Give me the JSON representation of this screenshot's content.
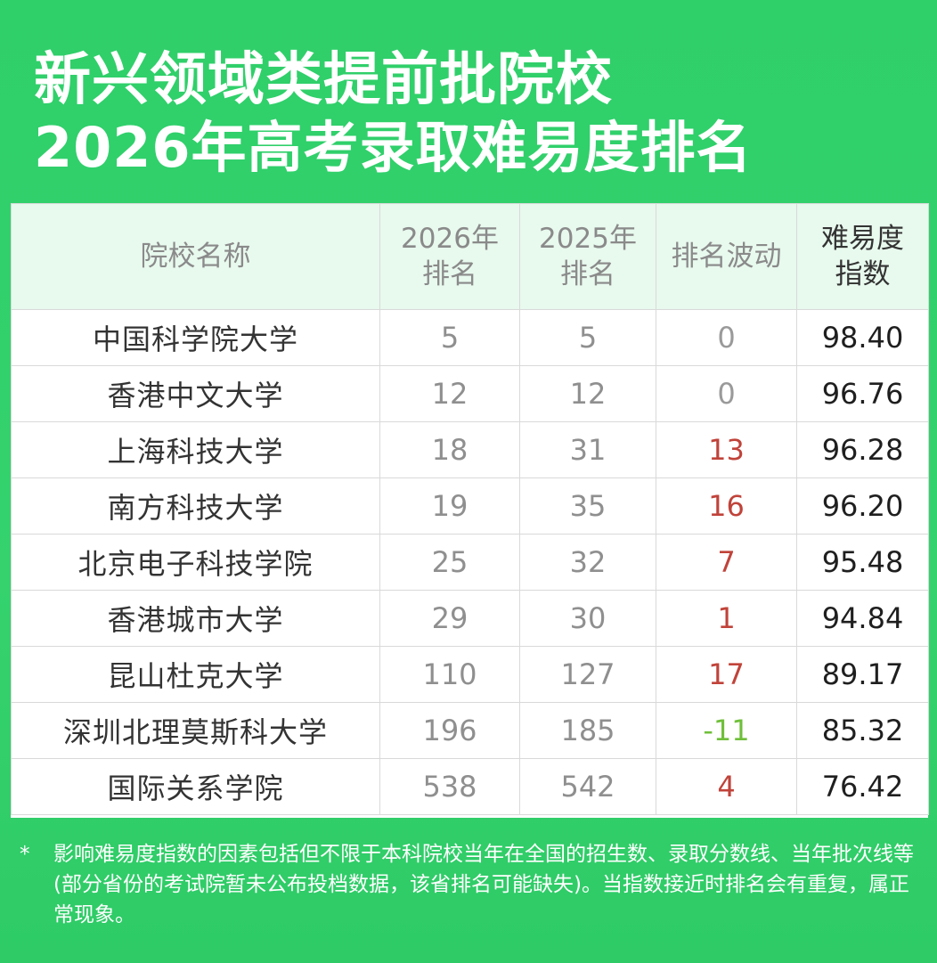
{
  "title": {
    "line1": "新兴领域类提前批院校",
    "line2": "2026年高考录取难易度排名"
  },
  "table": {
    "headers": {
      "school": "院校名称",
      "rank2026_a": "2026年",
      "rank2026_b": "排名",
      "rank2025_a": "2025年",
      "rank2025_b": "排名",
      "change": "排名波动",
      "index_a": "难易度",
      "index_b": "指数"
    },
    "rows": [
      {
        "school": "中国科学院大学",
        "r2026": "5",
        "r2025": "5",
        "change": "0",
        "index": "98.40"
      },
      {
        "school": "香港中文大学",
        "r2026": "12",
        "r2025": "12",
        "change": "0",
        "index": "96.76"
      },
      {
        "school": "上海科技大学",
        "r2026": "18",
        "r2025": "31",
        "change": "13",
        "index": "96.28"
      },
      {
        "school": "南方科技大学",
        "r2026": "19",
        "r2025": "35",
        "change": "16",
        "index": "96.20"
      },
      {
        "school": "北京电子科技学院",
        "r2026": "25",
        "r2025": "32",
        "change": "7",
        "index": "95.48"
      },
      {
        "school": "香港城市大学",
        "r2026": "29",
        "r2025": "30",
        "change": "1",
        "index": "94.84"
      },
      {
        "school": "昆山杜克大学",
        "r2026": "110",
        "r2025": "127",
        "change": "17",
        "index": "89.17"
      },
      {
        "school": "深圳北理莫斯科大学",
        "r2026": "196",
        "r2025": "185",
        "change": "-11",
        "index": "85.32"
      },
      {
        "school": "国际关系学院",
        "r2026": "538",
        "r2025": "542",
        "change": "4",
        "index": "76.42"
      }
    ]
  },
  "footnote": {
    "star": "*",
    "text": "影响难易度指数的因素包括但不限于本科院校当年在全国的招生数、录取分数线、当年批次线等(部分省份的考试院暂未公布投档数据，该省排名可能缺失)。当指数接近时排名会有重复，属正常现象。"
  },
  "colors": {
    "background": "#33d06c",
    "rank_up": "#c0433a",
    "rank_down": "#6fbf3a",
    "header_bg": "#e8f9ee"
  }
}
